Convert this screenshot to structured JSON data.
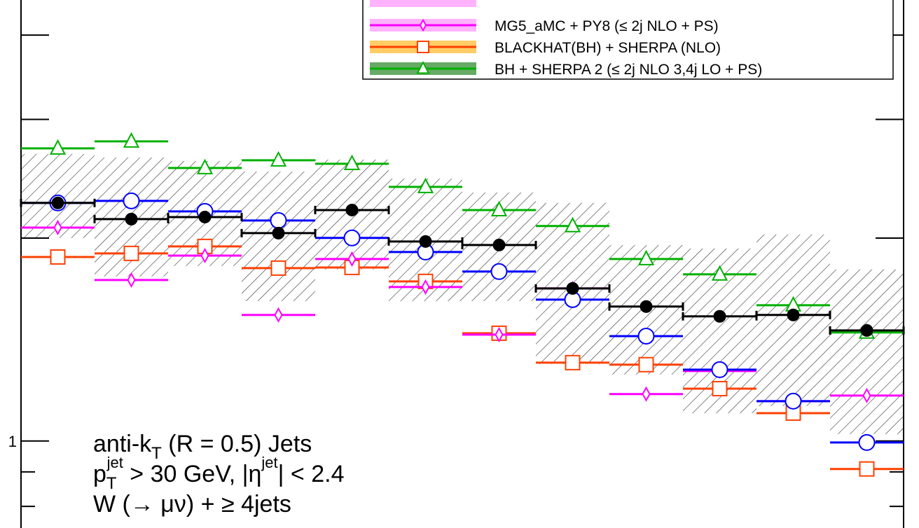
{
  "chart_data": {
    "type": "binned-comparison",
    "log_y": true,
    "ylim": [
      0.743,
      4.51
    ],
    "yticks": [
      1
    ],
    "y_unlabeled_ticks": [
      2,
      3,
      4
    ],
    "y_minor_ticks": [
      0.8,
      0.9
    ],
    "categories": [
      null,
      null,
      null,
      null,
      null,
      null,
      null,
      null,
      null,
      null,
      null,
      null
    ],
    "uncertainty_band": {
      "low": [
        2.001,
        1.754,
        1.818,
        1.613,
        1.797,
        1.613,
        1.613,
        1.301,
        1.255,
        1.1,
        1.127,
        1.024
      ],
      "high": [
        2.666,
        2.634,
        2.602,
        2.51,
        2.615,
        2.451,
        2.337,
        2.255,
        1.953,
        1.93,
        2.025,
        1.797
      ]
    },
    "series": [
      {
        "color": "#00b000",
        "band_color": "#66aa66",
        "marker": "triangle",
        "name": "BH + SHERPA 2 (≤ 2j NLO 3,4j LO + PS)",
        "values": [
          2.717,
          2.783,
          2.541,
          2.609,
          2.578,
          2.382,
          2.201,
          2.084,
          1.862,
          1.767,
          1.59,
          1.449
        ]
      },
      {
        "color": "#ff4000",
        "band_color": "#ffcc66",
        "marker": "square",
        "name": "BLACKHAT(BH) + SHERPA (NLO)",
        "values": [
          1.875,
          1.898,
          1.944,
          1.805,
          1.809,
          1.725,
          1.445,
          1.307,
          1.298,
          1.196,
          1.1,
          0.909
        ]
      },
      {
        "color": "#ff00ff",
        "band_color": "#ffb3ff",
        "marker": "diamond",
        "name": "MG5_aMC + PY8 (≤ 2j NLO + PS)",
        "values": [
          2.073,
          1.733,
          1.884,
          1.538,
          1.862,
          1.692,
          1.438,
          1.684,
          1.174,
          1.27,
          1.146,
          1.168
        ]
      },
      {
        "color": "#0000ff",
        "marker": "circle",
        "values": [
          2.255,
          2.271,
          2.191,
          2.124,
          2.001,
          1.907,
          1.784,
          1.621,
          1.431,
          1.276,
          1.146,
          0.995
        ]
      },
      {
        "color": "#000000",
        "marker": "dot",
        "values": [
          2.255,
          2.134,
          2.149,
          2.034,
          2.201,
          1.977,
          1.953,
          1.684,
          1.583,
          1.531,
          1.538,
          1.459
        ]
      }
    ],
    "annotations": [
      [
        {
          "text": "anti-k"
        },
        {
          "text": "T",
          "sub": true
        },
        {
          "text": " (R = 0.5) Jets"
        }
      ],
      [
        {
          "text": "p"
        },
        {
          "text": "T",
          "sub": true
        },
        {
          "text": "jet",
          "sup": true
        },
        {
          "text": " > 30 GeV, |η"
        },
        {
          "text": "jet",
          "sup": true
        },
        {
          "text": "| < 2.4"
        }
      ],
      [
        {
          "text": "W (→ μν) + ≥ 4jets"
        }
      ]
    ]
  }
}
